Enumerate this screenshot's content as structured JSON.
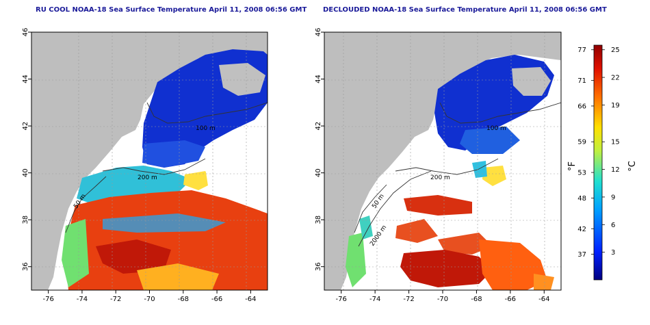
{
  "titles": {
    "left": "RU COOL NOAA-18 Sea Surface Temperature April 11, 2008 06:56 GMT",
    "right": "DECLOUDED NOAA-18 Sea Surface Temperature April 11, 2008 06:56 GMT"
  },
  "map": {
    "lon_range": [
      -77,
      -63
    ],
    "lat_range": [
      35,
      46
    ],
    "lon_ticks": [
      "-76",
      "-74",
      "-72",
      "-70",
      "-68",
      "-66",
      "-64"
    ],
    "lat_ticks": [
      "46",
      "44",
      "42",
      "40",
      "38",
      "36"
    ],
    "contour_labels": {
      "c100": "100 m",
      "c200": "200 m",
      "c50": "50 m",
      "c2000": "2000 m"
    },
    "colors": {
      "land": "#bebebe",
      "cloud": "#ffffff",
      "cold": "#1030d0",
      "warm": "#e03010"
    }
  },
  "colorbar": {
    "f_label": "°F",
    "c_label": "°C",
    "f_ticks": [
      "77",
      "71",
      "66",
      "59",
      "53",
      "48",
      "42",
      "37"
    ],
    "c_ticks": [
      "25",
      "22",
      "19",
      "15",
      "12",
      "9",
      "6",
      "3"
    ],
    "c_range": [
      0,
      25.5
    ]
  }
}
